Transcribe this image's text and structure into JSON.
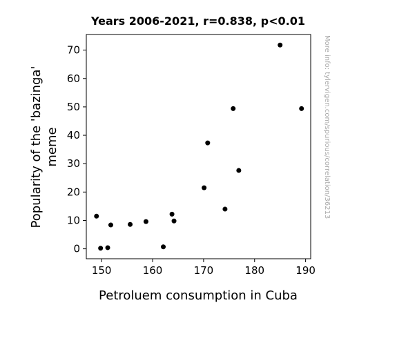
{
  "chart_data": {
    "type": "scatter",
    "title": "Years 2006-2021, r=0.838, p<0.01",
    "xlabel": "Petroluem consumption in Cuba",
    "ylabel_line1": "Popularity of the 'bazinga'",
    "ylabel_line2": "meme",
    "xlim": [
      147,
      191
    ],
    "ylim": [
      -3.5,
      75.5
    ],
    "xticks": [
      150,
      160,
      170,
      180,
      190
    ],
    "yticks": [
      0,
      10,
      20,
      30,
      40,
      50,
      60,
      70
    ],
    "grid": false,
    "point_color": "#000000",
    "points": [
      {
        "x": 149.0,
        "y": 11.5
      },
      {
        "x": 149.8,
        "y": 0.2
      },
      {
        "x": 151.2,
        "y": 0.4
      },
      {
        "x": 151.8,
        "y": 8.4
      },
      {
        "x": 155.6,
        "y": 8.6
      },
      {
        "x": 158.7,
        "y": 9.6
      },
      {
        "x": 162.1,
        "y": 0.7
      },
      {
        "x": 163.8,
        "y": 12.2
      },
      {
        "x": 164.2,
        "y": 9.8
      },
      {
        "x": 170.1,
        "y": 21.5
      },
      {
        "x": 170.8,
        "y": 37.3
      },
      {
        "x": 174.2,
        "y": 14.0
      },
      {
        "x": 175.8,
        "y": 49.4
      },
      {
        "x": 176.9,
        "y": 27.6
      },
      {
        "x": 185.0,
        "y": 71.8
      },
      {
        "x": 189.2,
        "y": 49.4
      }
    ]
  },
  "watermark": "More info: tylervigen.com/spurious/correlation/36213"
}
